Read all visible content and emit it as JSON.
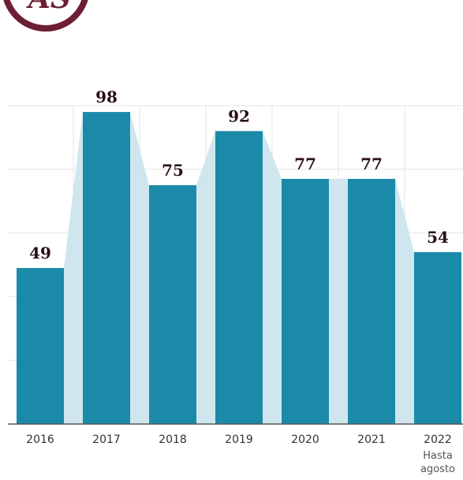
{
  "logo": {
    "text": "AS"
  },
  "chart_data": {
    "type": "bar",
    "title": "",
    "xlabel": "",
    "ylabel": "",
    "categories": [
      "2016",
      "2017",
      "2018",
      "2019",
      "2020",
      "2021",
      "2022"
    ],
    "category_notes": [
      "",
      "",
      "",
      "",
      "",
      "",
      "Hasta agosto"
    ],
    "values": [
      49,
      98,
      75,
      92,
      77,
      77,
      54
    ],
    "ylim": [
      0,
      100
    ],
    "grid": true,
    "colors": {
      "bar": "#1a8aa8",
      "connector": "#cfe6ee",
      "grid": "#e4e4e4",
      "axis": "#555555"
    }
  }
}
